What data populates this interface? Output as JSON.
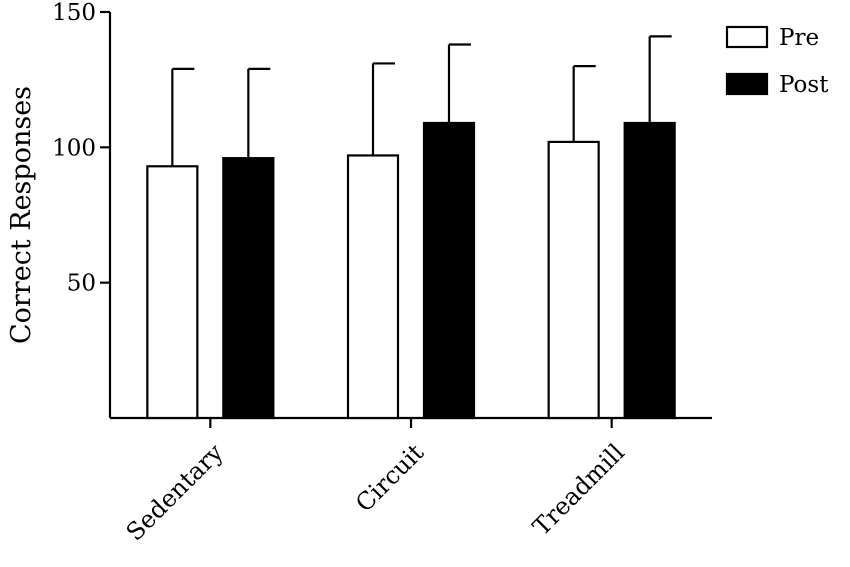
{
  "chart_data": {
    "type": "bar",
    "title": "",
    "xlabel": "",
    "ylabel": "Correct Responses",
    "ylim": [
      0,
      150
    ],
    "yticks": [
      50,
      100,
      150
    ],
    "categories": [
      "Sedentary",
      "Circuit",
      "Treadmill"
    ],
    "series": [
      {
        "name": "Pre",
        "values": [
          93,
          97,
          102
        ],
        "error_upper": [
          129,
          131,
          130
        ],
        "color": "#ffffff"
      },
      {
        "name": "Post",
        "values": [
          96,
          109,
          109
        ],
        "error_upper": [
          129,
          138,
          141
        ],
        "color": "#000000"
      }
    ],
    "legend_position": "top-right",
    "grid": false
  }
}
